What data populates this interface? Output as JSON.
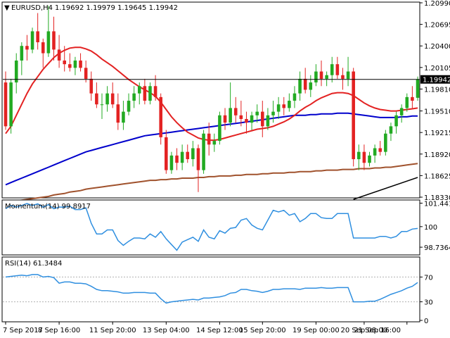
{
  "main_panel": {
    "header_symbol": "EURUSD,H4",
    "header_ohlc": "1.19692 1.19979 1.19645 1.19942",
    "price_ticks": [
      "1.20990",
      "1.20695",
      "1.20400",
      "1.20105",
      "1.19810",
      "1.19510",
      "1.19215",
      "1.18920",
      "1.18625",
      "1.18330"
    ],
    "current_price": "1.19942"
  },
  "momentum_panel": {
    "label": "Momentum(14) 99.8917",
    "ticks": [
      "101.4419",
      "100",
      "98.7364"
    ]
  },
  "rsi_panel": {
    "label": "RSI(14) 61.3484",
    "ticks": [
      "70",
      "30",
      "0"
    ]
  },
  "time_axis": {
    "labels": [
      "7 Sep 2017",
      "8 Sep 16:00",
      "11 Sep 20:00",
      "13 Sep 04:00",
      "14 Sep 12:00",
      "15 Sep 20:00",
      "19 Sep 00:00",
      "20 Sep 08:00",
      "21 Sep 16:00"
    ]
  },
  "chart_data": {
    "type": "candlestick",
    "symbol": "EURUSD",
    "timeframe": "H4",
    "ylim": [
      1.1833,
      1.2099
    ],
    "colors": {
      "bull": "#22aa22",
      "bear": "#e32222",
      "ma_fast": "#e32222",
      "ma_mid": "#0000cc",
      "ma_slow": "#a0522d",
      "trendline": "#000000",
      "momentum": "#2f8fe0",
      "rsi": "#2f8fe0"
    },
    "candles": [
      [
        1.199,
        1.2005,
        1.1925,
        1.193
      ],
      [
        1.193,
        1.1995,
        1.192,
        1.199
      ],
      [
        1.199,
        1.203,
        1.1975,
        1.202
      ],
      [
        1.202,
        1.2045,
        1.2,
        1.204
      ],
      [
        1.204,
        1.2055,
        1.202,
        1.2035
      ],
      [
        1.2035,
        1.2065,
        1.203,
        1.206
      ],
      [
        1.206,
        1.2085,
        1.2035,
        1.2045
      ],
      [
        1.2045,
        1.205,
        1.201,
        1.203
      ],
      [
        1.203,
        1.2095,
        1.2025,
        1.206
      ],
      [
        1.206,
        1.208,
        1.202,
        1.2035
      ],
      [
        1.2035,
        1.2055,
        1.201,
        1.202
      ],
      [
        1.202,
        1.204,
        1.2005,
        1.2015
      ],
      [
        1.2015,
        1.203,
        1.2005,
        1.201
      ],
      [
        1.201,
        1.2025,
        1.2,
        1.202
      ],
      [
        1.202,
        1.203,
        1.2005,
        1.201
      ],
      [
        1.201,
        1.202,
        1.199,
        1.1995
      ],
      [
        1.1995,
        1.2005,
        1.1965,
        1.1975
      ],
      [
        1.1975,
        1.199,
        1.1955,
        1.196
      ],
      [
        1.196,
        1.1975,
        1.194,
        1.196
      ],
      [
        1.196,
        1.1985,
        1.195,
        1.1975
      ],
      [
        1.1975,
        1.199,
        1.1955,
        1.196
      ],
      [
        1.196,
        1.1975,
        1.1925,
        1.1935
      ],
      [
        1.1935,
        1.1965,
        1.1925,
        1.195
      ],
      [
        1.195,
        1.1975,
        1.1945,
        1.1965
      ],
      [
        1.1965,
        1.1985,
        1.1955,
        1.1975
      ],
      [
        1.1975,
        1.199,
        1.196,
        1.1985
      ],
      [
        1.1985,
        1.1995,
        1.196,
        1.1965
      ],
      [
        1.1965,
        1.199,
        1.196,
        1.1985
      ],
      [
        1.1985,
        1.2,
        1.1965,
        1.197
      ],
      [
        1.197,
        1.1975,
        1.1905,
        1.1915
      ],
      [
        1.1915,
        1.1925,
        1.1865,
        1.187
      ],
      [
        1.187,
        1.1895,
        1.1865,
        1.189
      ],
      [
        1.189,
        1.19,
        1.187,
        1.188
      ],
      [
        1.188,
        1.1905,
        1.187,
        1.1895
      ],
      [
        1.1895,
        1.1905,
        1.188,
        1.1885
      ],
      [
        1.1885,
        1.191,
        1.1875,
        1.19
      ],
      [
        1.19,
        1.1905,
        1.184,
        1.187
      ],
      [
        1.187,
        1.1925,
        1.1865,
        1.192
      ],
      [
        1.192,
        1.1935,
        1.189,
        1.1905
      ],
      [
        1.1905,
        1.192,
        1.1895,
        1.191
      ],
      [
        1.191,
        1.195,
        1.1905,
        1.1945
      ],
      [
        1.1945,
        1.1955,
        1.1925,
        1.1935
      ],
      [
        1.1935,
        1.199,
        1.193,
        1.1955
      ],
      [
        1.1955,
        1.197,
        1.1935,
        1.1945
      ],
      [
        1.1945,
        1.1965,
        1.193,
        1.194
      ],
      [
        1.194,
        1.195,
        1.192,
        1.1935
      ],
      [
        1.1935,
        1.195,
        1.1925,
        1.1945
      ],
      [
        1.1945,
        1.196,
        1.1935,
        1.195
      ],
      [
        1.195,
        1.1965,
        1.1915,
        1.193
      ],
      [
        1.193,
        1.1955,
        1.1925,
        1.1945
      ],
      [
        1.1945,
        1.1965,
        1.1935,
        1.195
      ],
      [
        1.195,
        1.197,
        1.194,
        1.196
      ],
      [
        1.196,
        1.197,
        1.1945,
        1.1955
      ],
      [
        1.1955,
        1.1975,
        1.195,
        1.1965
      ],
      [
        1.1965,
        1.1985,
        1.1955,
        1.1975
      ],
      [
        1.1975,
        1.2005,
        1.1965,
        1.1995
      ],
      [
        1.1995,
        1.201,
        1.1975,
        1.198
      ],
      [
        1.198,
        1.2,
        1.197,
        1.199
      ],
      [
        1.199,
        1.2015,
        1.1985,
        1.2005
      ],
      [
        1.2005,
        1.202,
        1.1985,
        1.1995
      ],
      [
        1.1995,
        1.2005,
        1.1985,
        1.2
      ],
      [
        1.2,
        1.2025,
        1.199,
        1.2015
      ],
      [
        1.2015,
        1.2025,
        1.1995,
        1.2
      ],
      [
        1.2,
        1.201,
        1.198,
        1.1995
      ],
      [
        1.1995,
        1.2025,
        1.1985,
        1.2005
      ],
      [
        1.2005,
        1.201,
        1.1875,
        1.1885
      ],
      [
        1.1885,
        1.1905,
        1.187,
        1.1895
      ],
      [
        1.1895,
        1.1905,
        1.187,
        1.188
      ],
      [
        1.188,
        1.1895,
        1.1875,
        1.189
      ],
      [
        1.189,
        1.1905,
        1.188,
        1.19
      ],
      [
        1.19,
        1.191,
        1.189,
        1.1895
      ],
      [
        1.1895,
        1.1925,
        1.189,
        1.192
      ],
      [
        1.192,
        1.1935,
        1.191,
        1.193
      ],
      [
        1.193,
        1.195,
        1.192,
        1.1945
      ],
      [
        1.1945,
        1.196,
        1.1935,
        1.1955
      ],
      [
        1.1955,
        1.1975,
        1.195,
        1.197
      ],
      [
        1.197,
        1.1985,
        1.1955,
        1.1965
      ],
      [
        1.1969,
        1.1998,
        1.1965,
        1.1994
      ]
    ],
    "ma_fast": [
      1.192,
      1.193,
      1.1945,
      1.196,
      1.1975,
      1.1988,
      1.1998,
      1.2008,
      1.2016,
      1.2024,
      1.203,
      1.2034,
      1.2037,
      1.2038,
      1.2038,
      1.2036,
      1.2033,
      1.2028,
      1.2022,
      1.2017,
      1.2012,
      1.2006,
      1.2,
      1.1994,
      1.1989,
      1.1984,
      1.198,
      1.1976,
      1.1971,
      1.1963,
      1.1953,
      1.1943,
      1.1935,
      1.1928,
      1.1922,
      1.1918,
      1.1914,
      1.1912,
      1.1911,
      1.1911,
      1.1912,
      1.1914,
      1.1916,
      1.1918,
      1.192,
      1.1922,
      1.1924,
      1.1926,
      1.1927,
      1.1928,
      1.193,
      1.1933,
      1.1936,
      1.194,
      1.1945,
      1.1951,
      1.1956,
      1.196,
      1.1965,
      1.1969,
      1.1972,
      1.1975,
      1.1976,
      1.1976,
      1.1975,
      1.1972,
      1.1967,
      1.1962,
      1.1958,
      1.1955,
      1.1953,
      1.1952,
      1.1951,
      1.1951,
      1.1952,
      1.1953,
      1.1954,
      1.1955
    ],
    "ma_mid": [
      1.185,
      1.1853,
      1.1856,
      1.1859,
      1.1862,
      1.1865,
      1.1868,
      1.1871,
      1.1874,
      1.1877,
      1.188,
      1.1883,
      1.1886,
      1.1889,
      1.1892,
      1.1895,
      1.1897,
      1.1899,
      1.1901,
      1.1903,
      1.1905,
      1.1907,
      1.1909,
      1.1911,
      1.1913,
      1.1915,
      1.1917,
      1.1918,
      1.1919,
      1.192,
      1.1921,
      1.1922,
      1.1923,
      1.1924,
      1.1925,
      1.1926,
      1.1927,
      1.1928,
      1.1929,
      1.193,
      1.1931,
      1.1932,
      1.1933,
      1.1934,
      1.1935,
      1.1936,
      1.1937,
      1.1938,
      1.1939,
      1.194,
      1.1941,
      1.1942,
      1.1943,
      1.1944,
      1.1945,
      1.1945,
      1.1945,
      1.1946,
      1.1946,
      1.1947,
      1.1947,
      1.1947,
      1.1948,
      1.1948,
      1.1948,
      1.1947,
      1.1946,
      1.1945,
      1.1944,
      1.1943,
      1.1942,
      1.1942,
      1.1942,
      1.1942,
      1.1943,
      1.1943,
      1.1944,
      1.1944
    ],
    "ma_slow": [
      1.1826,
      1.1827,
      1.1828,
      1.1829,
      1.183,
      1.1831,
      1.1832,
      1.1833,
      1.1834,
      1.1836,
      1.1837,
      1.1838,
      1.184,
      1.1841,
      1.1842,
      1.1844,
      1.1845,
      1.1846,
      1.1847,
      1.1848,
      1.1849,
      1.185,
      1.1851,
      1.1852,
      1.1853,
      1.1854,
      1.1855,
      1.1856,
      1.1856,
      1.1857,
      1.1857,
      1.1858,
      1.1858,
      1.1859,
      1.1859,
      1.1859,
      1.186,
      1.186,
      1.1861,
      1.1861,
      1.1862,
      1.1862,
      1.1862,
      1.1863,
      1.1863,
      1.1864,
      1.1864,
      1.1864,
      1.1865,
      1.1865,
      1.1866,
      1.1866,
      1.1866,
      1.1867,
      1.1867,
      1.1868,
      1.1868,
      1.1868,
      1.1869,
      1.1869,
      1.187,
      1.187,
      1.187,
      1.1871,
      1.1871,
      1.1871,
      1.1872,
      1.1872,
      1.1872,
      1.1873,
      1.1873,
      1.1874,
      1.1874,
      1.1875,
      1.1876,
      1.1877,
      1.1878,
      1.1879
    ],
    "trendline": [
      [
        65,
        1.183
      ],
      [
        77,
        1.186
      ]
    ],
    "momentum": {
      "ylim": [
        98.35,
        101.55
      ],
      "values": [
        101.1,
        101.3,
        101.2,
        101.3,
        101.42,
        101.3,
        101.4,
        101.2,
        101.35,
        101.1,
        101.2,
        101.2,
        101.25,
        101.05,
        101.05,
        101.15,
        100.2,
        99.55,
        99.55,
        99.8,
        99.8,
        99.15,
        98.85,
        99.1,
        99.3,
        99.3,
        99.25,
        99.55,
        99.35,
        99.7,
        99.25,
        98.9,
        98.55,
        99.05,
        99.2,
        99.35,
        99.1,
        99.8,
        99.35,
        99.25,
        99.75,
        99.6,
        99.9,
        99.95,
        100.4,
        100.5,
        100.1,
        99.9,
        99.8,
        100.4,
        101.0,
        100.9,
        101.0,
        100.7,
        100.8,
        100.3,
        100.5,
        100.8,
        100.8,
        100.55,
        100.5,
        100.5,
        100.8,
        100.8,
        100.8,
        99.3,
        99.3,
        99.3,
        99.3,
        99.3,
        99.4,
        99.4,
        99.3,
        99.4,
        99.7,
        99.7,
        99.85,
        99.89
      ]
    },
    "rsi": {
      "ylim": [
        0,
        100
      ],
      "values": [
        70,
        71,
        72,
        73,
        72,
        74,
        74,
        70,
        71,
        69,
        60,
        62,
        62,
        60,
        60,
        59,
        55,
        50,
        48,
        48,
        47,
        46,
        44,
        44,
        45,
        45,
        45,
        44,
        44,
        35,
        28,
        30,
        31,
        32,
        33,
        34,
        33,
        36,
        36,
        37,
        38,
        40,
        44,
        45,
        50,
        50,
        48,
        47,
        45,
        47,
        50,
        50,
        51,
        51,
        51,
        50,
        52,
        52,
        52,
        53,
        52,
        52,
        53,
        53,
        53,
        30,
        30,
        30,
        31,
        31,
        34,
        38,
        42,
        45,
        48,
        52,
        55,
        61
      ]
    }
  }
}
